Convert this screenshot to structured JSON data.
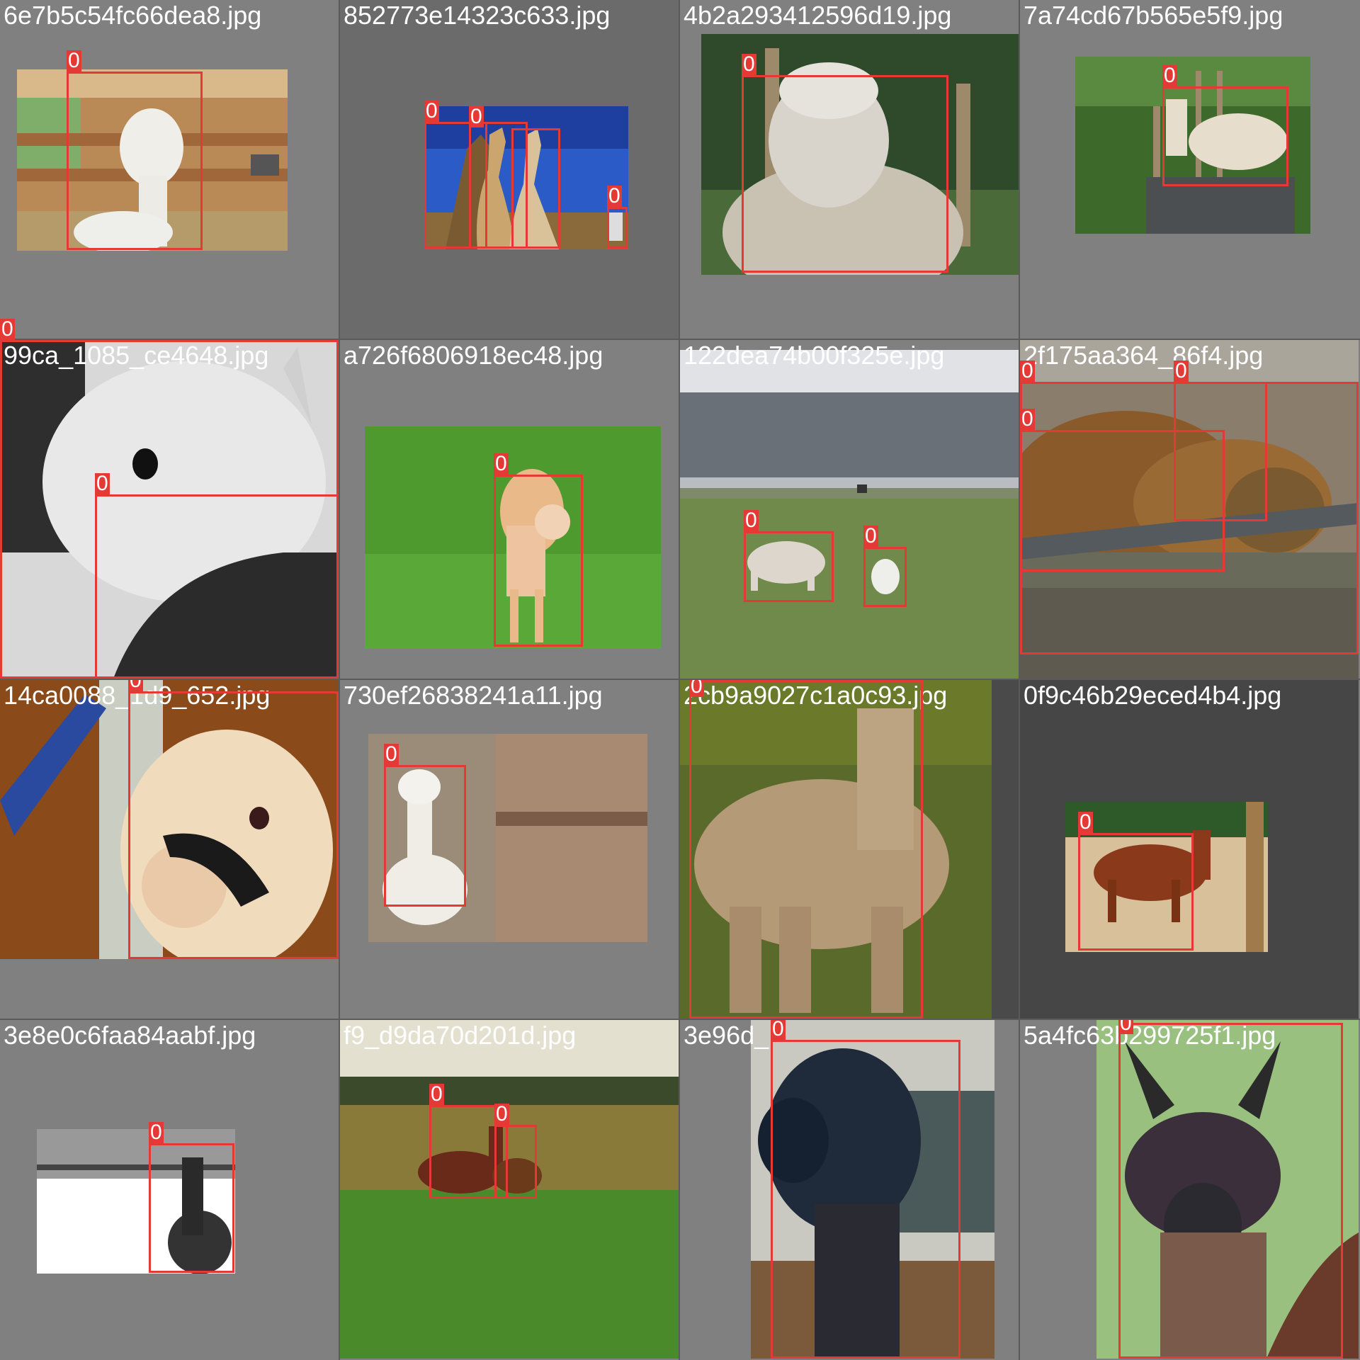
{
  "colors": {
    "box": "#e53935",
    "label_text": "#ffffff",
    "tile_bg": "#808080"
  },
  "class_label": "0",
  "tiles": [
    {
      "filename": "6e7b5c54fc66dea8.jpg"
    },
    {
      "filename": "852773e14323c633.jpg"
    },
    {
      "filename": "4b2a293412596d19.jpg"
    },
    {
      "filename": "7a74cd67b565e5f9.jpg"
    },
    {
      "filename": "99ca_1085_ce4648.jpg"
    },
    {
      "filename": "a726f6806918ec48.jpg"
    },
    {
      "filename": "122dea74b00f325e.jpg"
    },
    {
      "filename": "2f175aa364_86f4.jpg"
    },
    {
      "filename": "14ca0088_1d9_652.jpg"
    },
    {
      "filename": "730ef26838241a11.jpg"
    },
    {
      "filename": "2cb9a9027c1a0c93.jpg"
    },
    {
      "filename": "0f9c46b29eced4b4.jpg"
    },
    {
      "filename": "3e8e0c6faa84aabf.jpg"
    },
    {
      "filename": "f9_d9da70d201d.jpg"
    },
    {
      "filename": "3e96d_"
    },
    {
      "filename": "5a4fc63b299725f1.jpg"
    }
  ]
}
